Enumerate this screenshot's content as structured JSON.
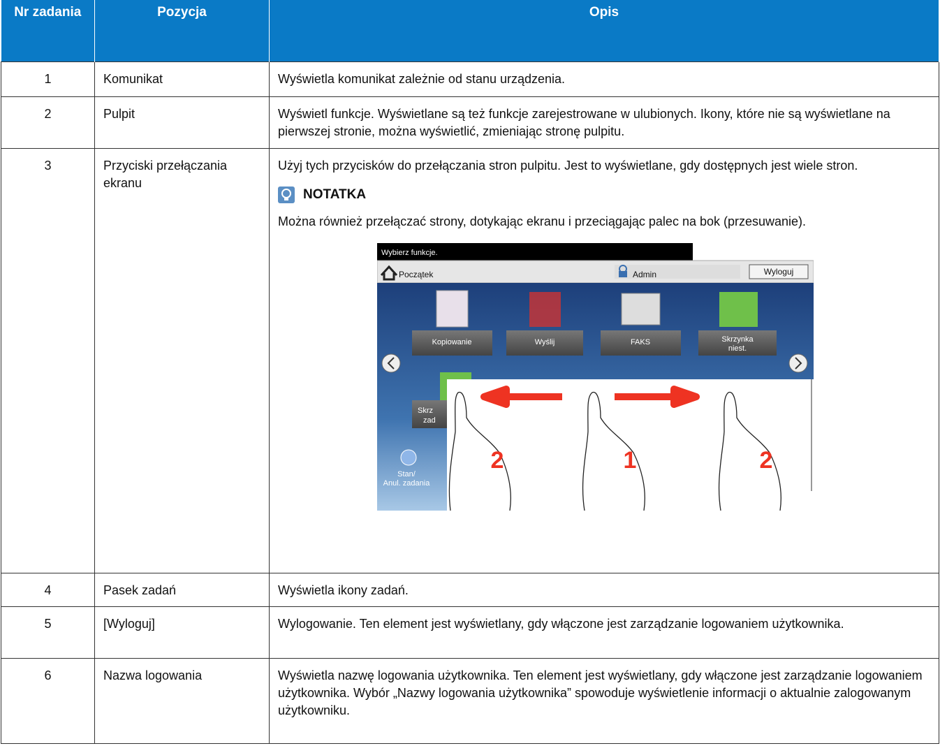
{
  "table": {
    "header": [
      "Nr zadania",
      "Pozycja",
      "Opis"
    ],
    "rows": [
      {
        "number": "1",
        "item": "Komunikat",
        "description": "Wyświetla komunikat zależnie od stanu urządzenia."
      },
      {
        "number": "2",
        "item": "Pulpit",
        "description": "Wyświetl funkcje. Wyświetlane są też funkcje zarejestrowane w ulubionych. Ikony, które nie są wyświetlane na pierwszej stronie, można wyświetlić, zmieniając stronę pulpitu."
      },
      {
        "number": "3",
        "item": "Przyciski przełączania ekranu",
        "description": "Użyj tych przycisków do przełączania stron pulpitu. Jest to wyświetlane, gdy dostępnych jest wiele stron.",
        "note": {
          "title": "NOTATKA",
          "text": "Można również przełączać strony, dotykając ekranu i przeciągając palec na bok (przesuwanie)."
        },
        "illustration": {
          "message": "Wybierz funkcje.",
          "home": "Początek",
          "user": "Admin",
          "logout": "Wyloguj",
          "buttons": [
            "Kopiowanie",
            "Wyślij",
            "FAKS",
            "Skrzynka",
            "niest."
          ],
          "partial_button": [
            "Skrz",
            "zad"
          ],
          "status": [
            "Stan/",
            "Anul. zadania"
          ],
          "gesture_numbers": [
            "2",
            "1",
            "2"
          ]
        }
      },
      {
        "number": "4",
        "item": "Pasek zadań",
        "description": "Wyświetla ikony zadań."
      },
      {
        "number": "5",
        "item": "[Wyloguj]",
        "description": "Wylogowanie. Ten element jest wyświetlany, gdy włączone jest zarządzanie logowaniem użytkownika."
      },
      {
        "number": "6",
        "item": "Nazwa logowania",
        "description": "Wyświetla nazwę logowania użytkownika. Ten element jest wyświetlany, gdy włączone jest zarządzanie logowaniem użytkownika. Wybór „Nazwy logowania użytkownika” spowoduje wyświetlenie informacji o aktualnie zalogowanym użytkowniku."
      }
    ]
  }
}
